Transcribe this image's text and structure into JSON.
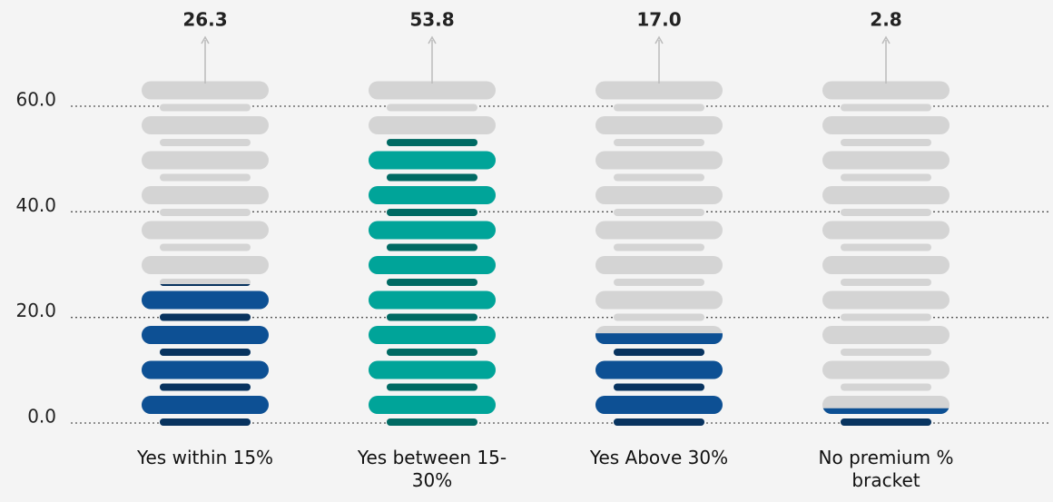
{
  "chart_data": {
    "type": "pictorial-bar",
    "categories": [
      "Yes within 15%",
      "Yes between 15-30%",
      "Yes Above 30%",
      "No premium % bracket"
    ],
    "values": [
      26.3,
      53.8,
      17.0,
      2.8
    ],
    "value_labels": [
      "26.3",
      "53.8",
      "17.0",
      "2.8"
    ],
    "colors": [
      "#0d5094",
      "#00a499",
      "#0d5094",
      "#0d5094"
    ],
    "ylim": [
      0,
      60
    ],
    "yticks": [
      {
        "value": 0,
        "label": "0.0"
      },
      {
        "value": 20,
        "label": "20.0"
      },
      {
        "value": 40,
        "label": "40.0"
      },
      {
        "value": 60,
        "label": "60.0"
      }
    ],
    "grid": true
  }
}
